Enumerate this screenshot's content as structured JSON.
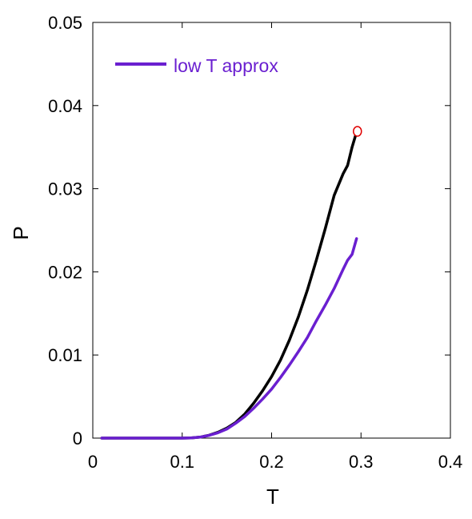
{
  "chart_data": {
    "type": "line",
    "xlabel": "T",
    "ylabel": "P",
    "xlim": [
      0,
      0.4
    ],
    "ylim": [
      0,
      0.05
    ],
    "xticks": [
      0,
      0.1,
      0.2,
      0.3,
      0.4
    ],
    "xtick_labels": [
      "0",
      "0.1",
      "0.2",
      "0.3",
      "0.4"
    ],
    "yticks": [
      0,
      0.01,
      0.02,
      0.03,
      0.04,
      0.05
    ],
    "ytick_labels": [
      "0",
      "0.01",
      "0.02",
      "0.03",
      "0.04",
      "0.05"
    ],
    "grid": false,
    "legend_position": "top-left",
    "series": [
      {
        "color": "#000000",
        "x": [
          0.01,
          0.05,
          0.1,
          0.11,
          0.12,
          0.13,
          0.14,
          0.15,
          0.16,
          0.17,
          0.18,
          0.19,
          0.2,
          0.21,
          0.22,
          0.23,
          0.24,
          0.25,
          0.26,
          0.27,
          0.28,
          0.285,
          0.29,
          0.295
        ],
        "y": [
          0,
          0,
          0,
          2e-05,
          0.00012,
          0.00035,
          0.0007,
          0.0012,
          0.0019,
          0.0029,
          0.0042,
          0.0057,
          0.0074,
          0.0094,
          0.0118,
          0.0146,
          0.0178,
          0.0214,
          0.0252,
          0.0292,
          0.0318,
          0.0328,
          0.035,
          0.0368
        ]
      },
      {
        "name": "low T approx",
        "color": "#6a1fd0",
        "x": [
          0.01,
          0.05,
          0.1,
          0.11,
          0.12,
          0.13,
          0.14,
          0.15,
          0.16,
          0.17,
          0.18,
          0.19,
          0.2,
          0.21,
          0.22,
          0.23,
          0.24,
          0.25,
          0.26,
          0.27,
          0.28,
          0.285,
          0.29,
          0.295
        ],
        "y": [
          0,
          0,
          0,
          2e-05,
          0.00012,
          0.00033,
          0.00065,
          0.0011,
          0.0018,
          0.0026,
          0.0036,
          0.0047,
          0.0059,
          0.0073,
          0.0088,
          0.0104,
          0.0121,
          0.0141,
          0.016,
          0.018,
          0.0203,
          0.0214,
          0.0221,
          0.024
        ]
      }
    ],
    "markers": [
      {
        "x": 0.296,
        "y": 0.0369,
        "color": "#e00000"
      }
    ]
  }
}
